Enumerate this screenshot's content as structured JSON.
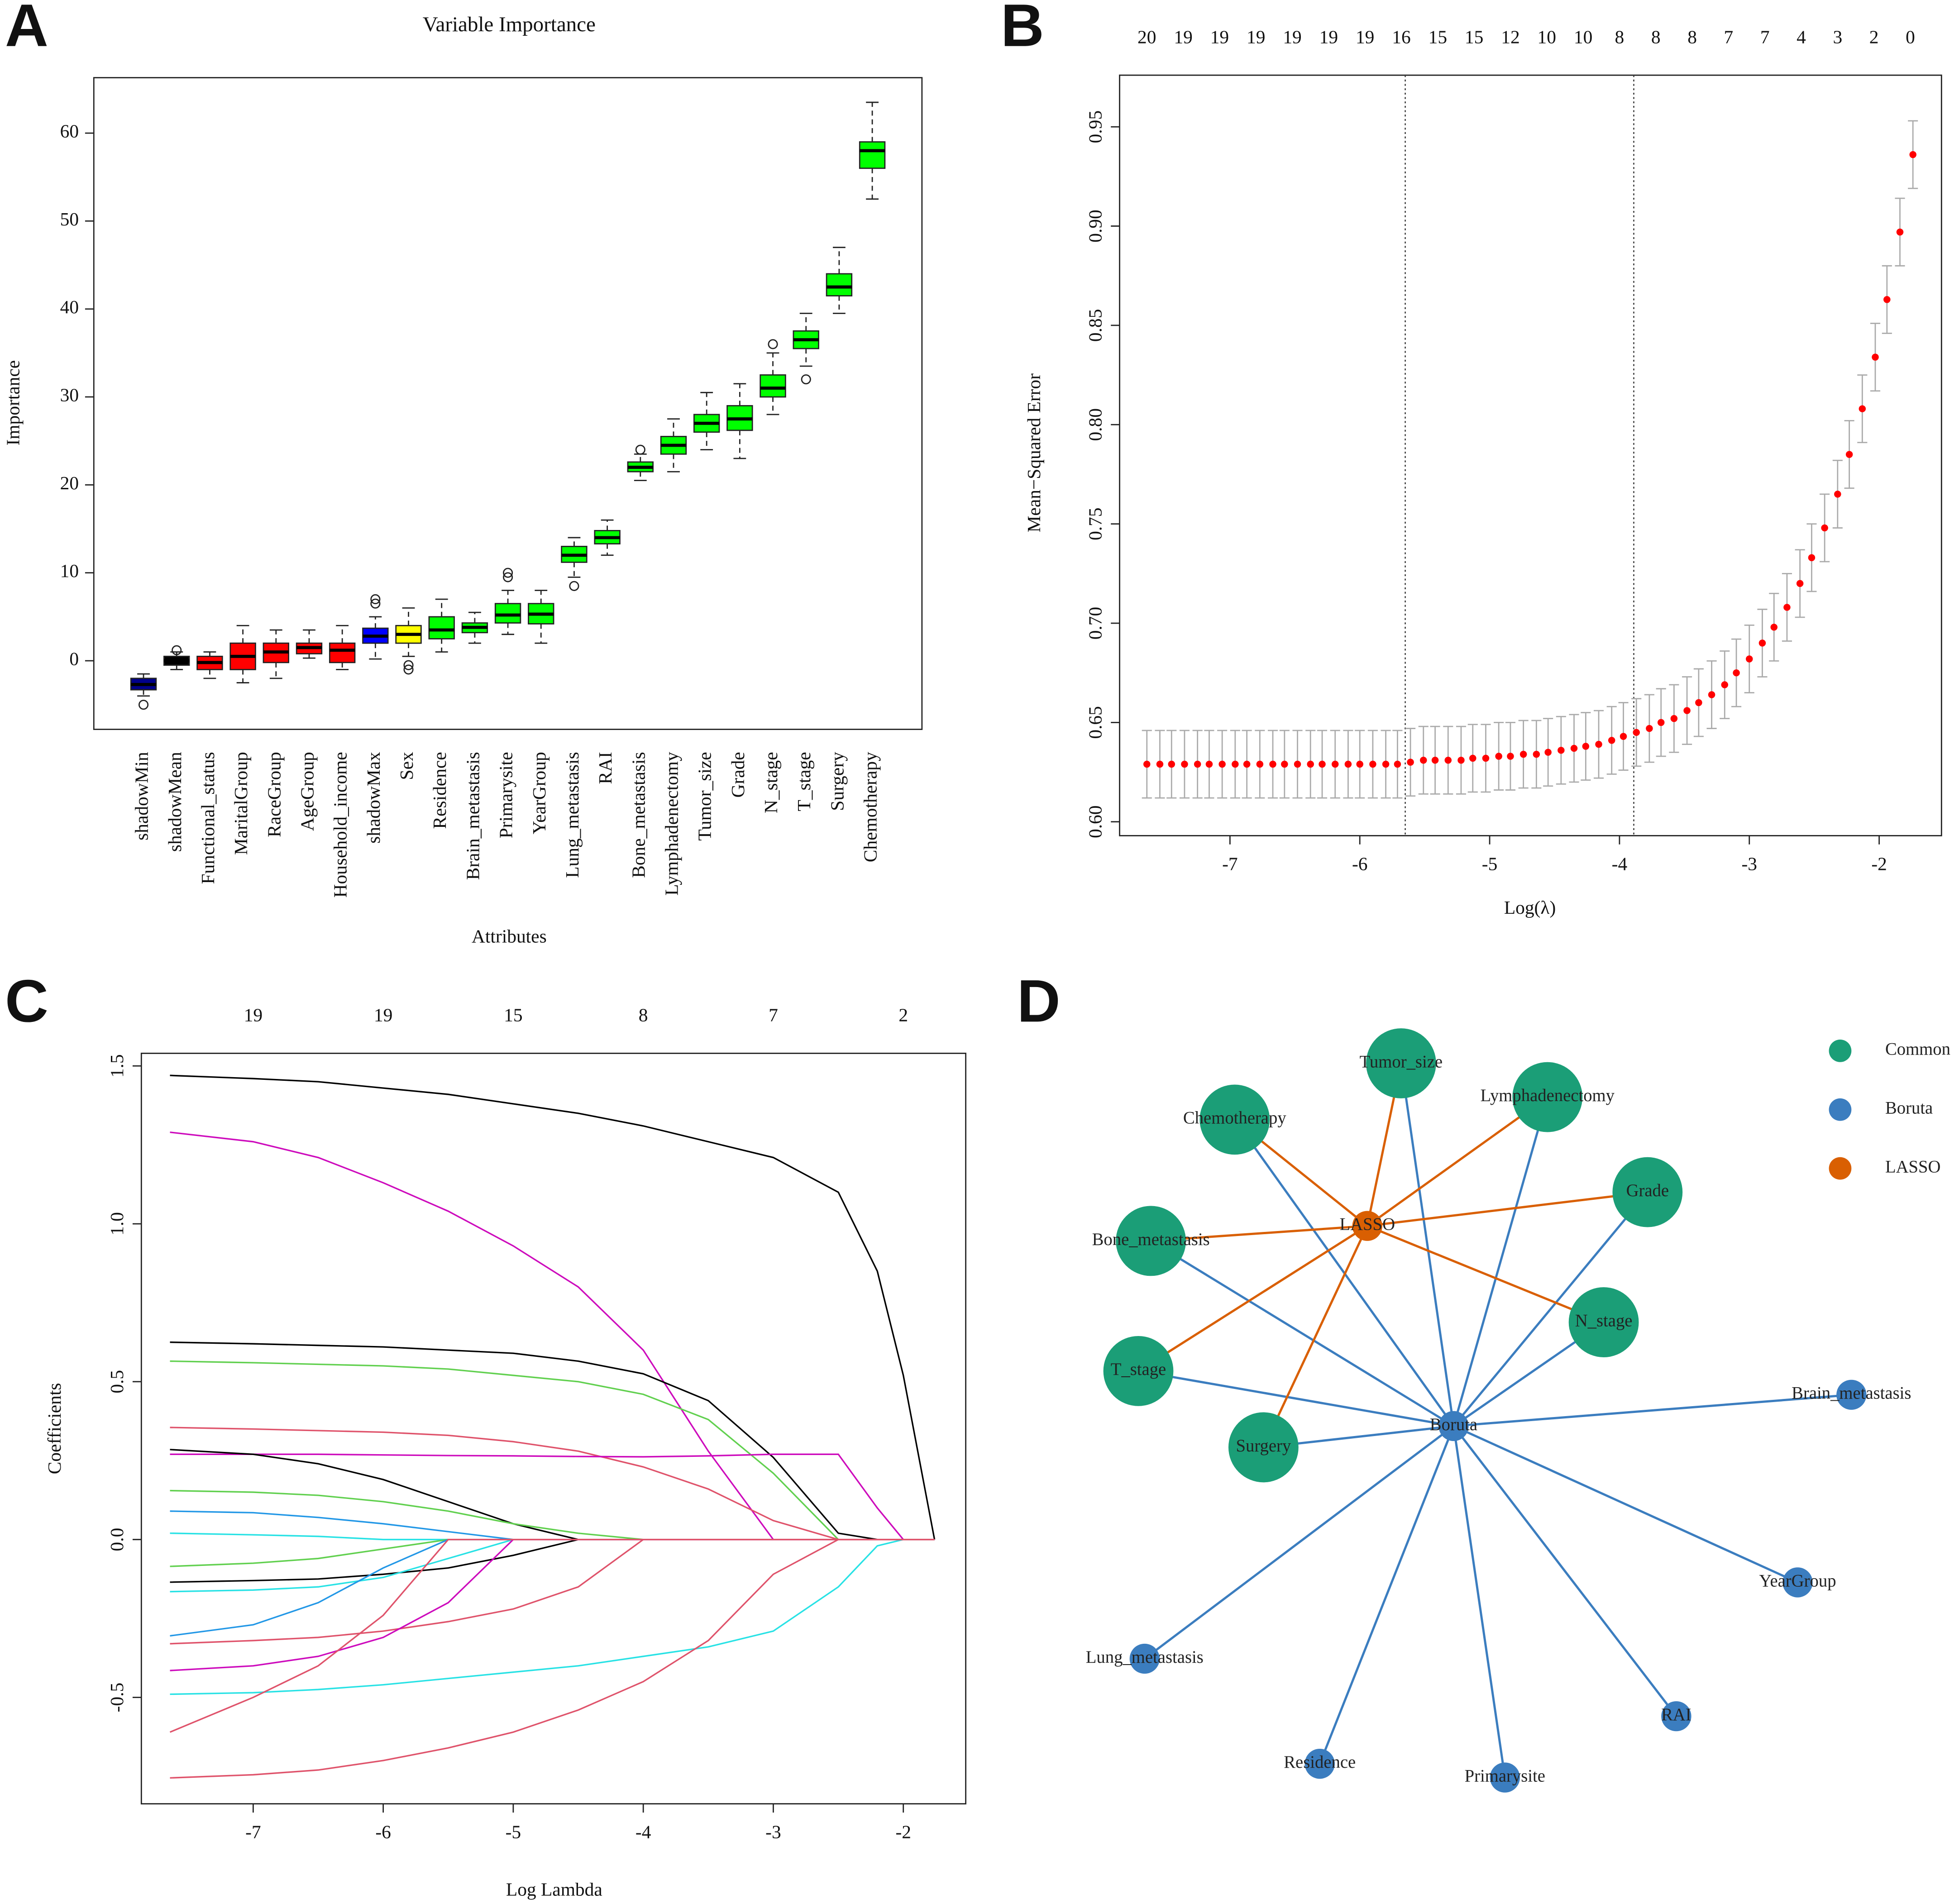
{
  "panel_labels": [
    "A",
    "B",
    "C",
    "D"
  ],
  "chart_data": [
    {
      "type": "box",
      "title": "Variable Importance",
      "x_label": "Attributes",
      "y_label": "Importance",
      "ylim": [
        -7.8,
        66.3
      ],
      "yticks": [
        0,
        10,
        20,
        30,
        40,
        50,
        60
      ],
      "categories": [
        "shadowMin",
        "shadowMean",
        "Functional_status",
        "MaritalGroup",
        "RaceGroup",
        "AgeGroup",
        "Household_income",
        "shadowMax",
        "Sex",
        "Residence",
        "Brain_metastasis",
        "Primarysite",
        "YearGroup",
        "Lung_metastasis",
        "RAI",
        "Bone_metastasis",
        "Lymphadenectomy",
        "Tumor_size",
        "Grade",
        "N_stage",
        "T_stage",
        "Surgery",
        "Chemotherapy"
      ],
      "boxes": [
        {
          "color": "#00008b",
          "min": -4,
          "q1": -3.3,
          "median": -2.7,
          "q3": -2,
          "max": -1.5,
          "outliers": [
            -5
          ]
        },
        {
          "color": "#000000",
          "min": -1,
          "q1": -0.5,
          "median": 0,
          "q3": 0.5,
          "max": 1,
          "outliers": [
            1.2
          ]
        },
        {
          "color": "#ff0000",
          "min": -2,
          "q1": -1,
          "median": -0.2,
          "q3": 0.5,
          "max": 1,
          "outliers": []
        },
        {
          "color": "#ff0000",
          "min": -2.5,
          "q1": -1,
          "median": 0.5,
          "q3": 2,
          "max": 4,
          "outliers": []
        },
        {
          "color": "#ff0000",
          "min": -2,
          "q1": -0.2,
          "median": 1,
          "q3": 2,
          "max": 3.5,
          "outliers": []
        },
        {
          "color": "#ff0000",
          "min": 0.3,
          "q1": 0.8,
          "median": 1.5,
          "q3": 2,
          "max": 3.5,
          "outliers": []
        },
        {
          "color": "#ff0000",
          "min": -1,
          "q1": -0.2,
          "median": 1.2,
          "q3": 2,
          "max": 4,
          "outliers": []
        },
        {
          "color": "#0000ff",
          "min": 0.2,
          "q1": 2,
          "median": 2.8,
          "q3": 3.7,
          "max": 5,
          "outliers": [
            6.5,
            7
          ]
        },
        {
          "color": "#ffff00",
          "min": 0.5,
          "q1": 2,
          "median": 3,
          "q3": 4,
          "max": 6,
          "outliers": [
            -0.5,
            -1
          ]
        },
        {
          "color": "#00ff00",
          "min": 1,
          "q1": 2.5,
          "median": 3.5,
          "q3": 5,
          "max": 7,
          "outliers": []
        },
        {
          "color": "#00ff00",
          "min": 2,
          "q1": 3.2,
          "median": 3.8,
          "q3": 4.3,
          "max": 5.5,
          "outliers": []
        },
        {
          "color": "#00ff00",
          "min": 3,
          "q1": 4.3,
          "median": 5.2,
          "q3": 6.5,
          "max": 8,
          "outliers": [
            9.5,
            10
          ]
        },
        {
          "color": "#00ff00",
          "min": 2,
          "q1": 4.2,
          "median": 5.3,
          "q3": 6.5,
          "max": 8,
          "outliers": []
        },
        {
          "color": "#00ff00",
          "min": 9.5,
          "q1": 11.2,
          "median": 12,
          "q3": 13,
          "max": 14,
          "outliers": [
            8.5
          ]
        },
        {
          "color": "#00ff00",
          "min": 12,
          "q1": 13.3,
          "median": 14,
          "q3": 14.8,
          "max": 16,
          "outliers": []
        },
        {
          "color": "#00ff00",
          "min": 20.5,
          "q1": 21.5,
          "median": 22,
          "q3": 22.6,
          "max": 23.5,
          "outliers": [
            24
          ]
        },
        {
          "color": "#00ff00",
          "min": 21.5,
          "q1": 23.5,
          "median": 24.5,
          "q3": 25.5,
          "max": 27.5,
          "outliers": []
        },
        {
          "color": "#00ff00",
          "min": 24,
          "q1": 26,
          "median": 27,
          "q3": 28,
          "max": 30.5,
          "outliers": []
        },
        {
          "color": "#00ff00",
          "min": 23,
          "q1": 26.2,
          "median": 27.5,
          "q3": 29,
          "max": 31.5,
          "outliers": []
        },
        {
          "color": "#00ff00",
          "min": 28,
          "q1": 30,
          "median": 31,
          "q3": 32.5,
          "max": 35,
          "outliers": [
            36
          ]
        },
        {
          "color": "#00ff00",
          "min": 33.5,
          "q1": 35.5,
          "median": 36.5,
          "q3": 37.5,
          "max": 39.5,
          "outliers": [
            32
          ]
        },
        {
          "color": "#00ff00",
          "min": 39.5,
          "q1": 41.5,
          "median": 42.5,
          "q3": 44,
          "max": 47,
          "outliers": []
        },
        {
          "color": "#00ff00",
          "min": 52.5,
          "q1": 56,
          "median": 58,
          "q3": 59,
          "max": 63.5,
          "outliers": []
        }
      ]
    },
    {
      "type": "errorbar",
      "x_label": "Log(λ)",
      "y_label": "Mean−Squared Error",
      "color": "#ff0000",
      "error_color": "#aaaaaa",
      "error": 0.017,
      "xlim": [
        -7.85,
        -1.52
      ],
      "ylim": [
        0.593,
        0.976
      ],
      "xticks": [
        -7,
        -6,
        -5,
        -4,
        -3,
        -2
      ],
      "yticks": [
        {
          "value": 0.6,
          "label": "0.60"
        },
        0.65,
        {
          "value": 0.7,
          "label": "0.70"
        },
        0.75,
        {
          "value": 0.8,
          "label": "0.80"
        },
        0.85,
        {
          "value": 0.9,
          "label": "0.90"
        },
        0.95
      ],
      "top_ticks": [
        {
          "value": -7.64,
          "label": "20"
        },
        {
          "value": -7.36,
          "label": "19"
        },
        {
          "value": -7.08,
          "label": "19"
        },
        {
          "value": -6.8,
          "label": "19"
        },
        {
          "value": -6.52,
          "label": "19"
        },
        {
          "value": -6.24,
          "label": "19"
        },
        {
          "value": -5.96,
          "label": "19"
        },
        {
          "value": -5.68,
          "label": "16"
        },
        {
          "value": -5.4,
          "label": "15"
        },
        {
          "value": -5.12,
          "label": "15"
        },
        {
          "value": -4.84,
          "label": "12"
        },
        {
          "value": -4.56,
          "label": "10"
        },
        {
          "value": -4.28,
          "label": "10"
        },
        {
          "value": -4,
          "label": "8"
        },
        {
          "value": -3.72,
          "label": "8"
        },
        {
          "value": -3.44,
          "label": "8"
        },
        {
          "value": -3.16,
          "label": "7"
        },
        {
          "value": -2.88,
          "label": "7"
        },
        {
          "value": -2.6,
          "label": "4"
        },
        {
          "value": -2.32,
          "label": "3"
        },
        {
          "value": -2.04,
          "label": "2"
        },
        {
          "value": -1.76,
          "label": "0"
        }
      ],
      "vlines": [
        -5.65,
        -3.89
      ],
      "x": [
        -7.64,
        -7.54,
        -7.45,
        -7.35,
        -7.25,
        -7.16,
        -7.06,
        -6.96,
        -6.87,
        -6.77,
        -6.67,
        -6.58,
        -6.48,
        -6.38,
        -6.29,
        -6.19,
        -6.09,
        -6.0,
        -5.9,
        -5.8,
        -5.71,
        -5.61,
        -5.51,
        -5.42,
        -5.32,
        -5.22,
        -5.13,
        -5.03,
        -4.93,
        -4.84,
        -4.74,
        -4.64,
        -4.55,
        -4.45,
        -4.35,
        -4.26,
        -4.16,
        -4.06,
        -3.97,
        -3.87,
        -3.77,
        -3.68,
        -3.58,
        -3.48,
        -3.39,
        -3.29,
        -3.19,
        -3.1,
        -3.0,
        -2.9,
        -2.81,
        -2.71,
        -2.61,
        -2.52,
        -2.42,
        -2.32,
        -2.23,
        -2.13,
        -2.03,
        -1.94,
        -1.84,
        -1.74
      ],
      "values": [
        0.629,
        0.629,
        0.629,
        0.629,
        0.629,
        0.629,
        0.629,
        0.629,
        0.629,
        0.629,
        0.629,
        0.629,
        0.629,
        0.629,
        0.629,
        0.629,
        0.629,
        0.629,
        0.629,
        0.629,
        0.629,
        0.63,
        0.631,
        0.631,
        0.631,
        0.631,
        0.632,
        0.632,
        0.633,
        0.633,
        0.634,
        0.634,
        0.635,
        0.636,
        0.637,
        0.638,
        0.639,
        0.641,
        0.643,
        0.645,
        0.647,
        0.65,
        0.652,
        0.656,
        0.66,
        0.664,
        0.669,
        0.675,
        0.682,
        0.69,
        0.698,
        0.708,
        0.72,
        0.733,
        0.748,
        0.765,
        0.785,
        0.808,
        0.834,
        0.863,
        0.897,
        0.936
      ]
    },
    {
      "type": "line",
      "x_label": "Log Lambda",
      "y_label": "Coefficients",
      "xlim": [
        -7.86,
        -1.52
      ],
      "ylim": [
        -0.837,
        1.54
      ],
      "xticks": [
        -7,
        -6,
        -5,
        -4,
        -3,
        -2
      ],
      "yticks": [
        -0.5,
        {
          "value": 0,
          "label": "0.0"
        },
        0.5,
        {
          "value": 1,
          "label": "1.0"
        },
        1.5
      ],
      "top_ticks": [
        {
          "value": -7,
          "label": "19"
        },
        {
          "value": -6,
          "label": "19"
        },
        {
          "value": -5,
          "label": "15"
        },
        {
          "value": -4,
          "label": "8"
        },
        {
          "value": -3,
          "label": "7"
        },
        {
          "value": -2,
          "label": "2"
        }
      ],
      "x": [
        -7.64,
        -7,
        -6.5,
        -6,
        -5.5,
        -5,
        -4.5,
        -4,
        -3.5,
        -3,
        -2.5,
        -2.2,
        -2,
        -1.76
      ],
      "series": [
        {
          "color": "#000000",
          "values": [
            1.47,
            1.46,
            1.45,
            1.43,
            1.41,
            1.38,
            1.35,
            1.31,
            1.26,
            1.21,
            1.1,
            0.85,
            0.52,
            0
          ]
        },
        {
          "color": "#cd0bbc",
          "values": [
            1.29,
            1.26,
            1.21,
            1.13,
            1.04,
            0.93,
            0.8,
            0.6,
            0.28,
            0,
            0,
            0,
            0,
            0
          ]
        },
        {
          "color": "#000000",
          "values": [
            0.625,
            0.62,
            0.615,
            0.61,
            0.6,
            0.59,
            0.565,
            0.525,
            0.44,
            0.26,
            0.02,
            0,
            0,
            0
          ]
        },
        {
          "color": "#61d04f",
          "values": [
            0.565,
            0.56,
            0.555,
            0.55,
            0.54,
            0.52,
            0.5,
            0.46,
            0.38,
            0.21,
            0,
            0,
            0,
            0
          ]
        },
        {
          "color": "#df536b",
          "values": [
            0.355,
            0.35,
            0.345,
            0.34,
            0.33,
            0.31,
            0.28,
            0.23,
            0.16,
            0.06,
            0,
            0,
            0,
            0
          ]
        },
        {
          "color": "#cd0bbc",
          "values": [
            0.27,
            0.27,
            0.27,
            0.268,
            0.266,
            0.265,
            0.263,
            0.262,
            0.265,
            0.27,
            0.27,
            0.1,
            0,
            0
          ]
        },
        {
          "color": "#000000",
          "values": [
            0.285,
            0.27,
            0.24,
            0.19,
            0.12,
            0.05,
            0,
            0,
            0,
            0,
            0,
            0,
            0,
            0
          ]
        },
        {
          "color": "#61d04f",
          "values": [
            0.155,
            0.15,
            0.14,
            0.12,
            0.09,
            0.05,
            0.02,
            0,
            0,
            0,
            0,
            0,
            0,
            0
          ]
        },
        {
          "color": "#2297e6",
          "values": [
            0.09,
            0.085,
            0.07,
            0.05,
            0.025,
            0,
            0,
            0,
            0,
            0,
            0,
            0,
            0,
            0
          ]
        },
        {
          "color": "#28e2e5",
          "values": [
            0.02,
            0.015,
            0.01,
            0,
            0,
            0,
            0,
            0,
            0,
            0,
            0,
            0,
            0,
            0
          ]
        },
        {
          "color": "#61d04f",
          "values": [
            -0.085,
            -0.075,
            -0.06,
            -0.03,
            0,
            0,
            0,
            0,
            0,
            0,
            0,
            0,
            0,
            0
          ]
        },
        {
          "color": "#000000",
          "values": [
            -0.135,
            -0.13,
            -0.125,
            -0.11,
            -0.09,
            -0.05,
            0,
            0,
            0,
            0,
            0,
            0,
            0,
            0
          ]
        },
        {
          "color": "#28e2e5",
          "values": [
            -0.165,
            -0.16,
            -0.15,
            -0.12,
            -0.06,
            0,
            0,
            0,
            0,
            0,
            0,
            0,
            0,
            0
          ]
        },
        {
          "color": "#2297e6",
          "values": [
            -0.305,
            -0.27,
            -0.2,
            -0.09,
            0,
            0,
            0,
            0,
            0,
            0,
            0,
            0,
            0,
            0
          ]
        },
        {
          "color": "#df536b",
          "values": [
            -0.33,
            -0.32,
            -0.31,
            -0.29,
            -0.26,
            -0.22,
            -0.15,
            0,
            0,
            0,
            0,
            0,
            0,
            0
          ]
        },
        {
          "color": "#cd0bbc",
          "values": [
            -0.415,
            -0.4,
            -0.37,
            -0.31,
            -0.2,
            0,
            0,
            0,
            0,
            0,
            0,
            0,
            0,
            0
          ]
        },
        {
          "color": "#28e2e5",
          "values": [
            -0.49,
            -0.485,
            -0.475,
            -0.46,
            -0.44,
            -0.42,
            -0.4,
            -0.37,
            -0.34,
            -0.29,
            -0.15,
            -0.02,
            0,
            0
          ]
        },
        {
          "color": "#df536b",
          "values": [
            -0.61,
            -0.5,
            -0.4,
            -0.24,
            0,
            0,
            0,
            0,
            0,
            0,
            0,
            0,
            0,
            0
          ]
        },
        {
          "color": "#df536b",
          "values": [
            -0.755,
            -0.745,
            -0.73,
            -0.7,
            -0.66,
            -0.61,
            -0.54,
            -0.45,
            -0.32,
            -0.11,
            0,
            0,
            0,
            0
          ]
        }
      ]
    }
  ],
  "network": {
    "legend": [
      {
        "label": "Common",
        "color": "#1b9e77"
      },
      {
        "label": "Boruta",
        "color": "#3b7dbf"
      },
      {
        "label": "LASSO",
        "color": "#d95f02"
      }
    ],
    "nodes": [
      {
        "label": "Tumor_size",
        "group": "Common"
      },
      {
        "label": "Lymphadenectomy",
        "group": "Common"
      },
      {
        "label": "Chemotherapy",
        "group": "Common"
      },
      {
        "label": "Grade",
        "group": "Common"
      },
      {
        "label": "LASSO",
        "group": "LASSO"
      },
      {
        "label": "Bone_metastasis",
        "group": "Common"
      },
      {
        "label": "N_stage",
        "group": "Common"
      },
      {
        "label": "T_stage",
        "group": "Common"
      },
      {
        "label": "Surgery",
        "group": "Common"
      },
      {
        "label": "Boruta",
        "group": "Boruta"
      },
      {
        "label": "Brain_metastasis",
        "group": "Boruta"
      },
      {
        "label": "YearGroup",
        "group": "Boruta"
      },
      {
        "label": "Lung_metastasis",
        "group": "Boruta"
      },
      {
        "label": "RAI",
        "group": "Boruta"
      },
      {
        "label": "Residence",
        "group": "Boruta"
      },
      {
        "label": "Primarysite",
        "group": "Boruta"
      }
    ]
  }
}
